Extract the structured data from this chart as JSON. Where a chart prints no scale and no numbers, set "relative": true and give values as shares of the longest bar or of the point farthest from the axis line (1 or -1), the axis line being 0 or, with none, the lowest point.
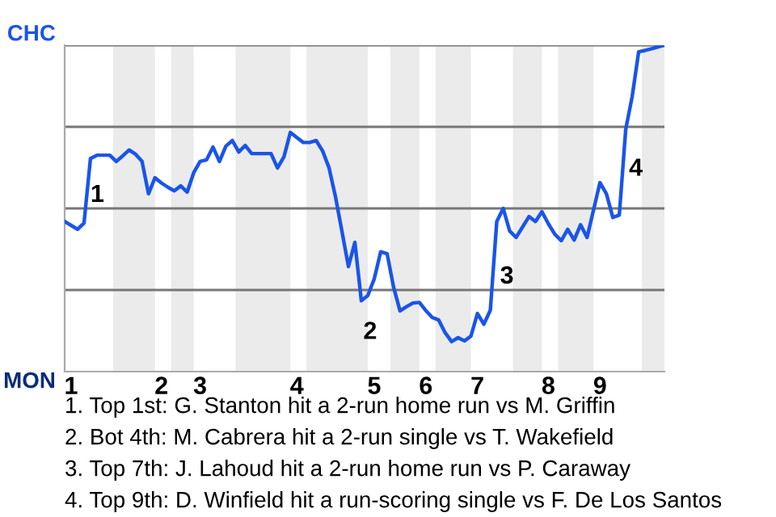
{
  "chart_data": {
    "type": "line",
    "relative": true,
    "categories": [
      null,
      "1",
      null,
      null,
      null,
      null,
      null,
      null,
      null,
      null,
      null,
      null,
      null,
      null,
      null,
      "2",
      null,
      null,
      null,
      null,
      null,
      "3",
      null,
      null,
      null,
      null,
      null,
      null,
      null,
      null,
      null,
      null,
      null,
      null,
      null,
      null,
      "4",
      null,
      null,
      null,
      null,
      null,
      null,
      null,
      null,
      null,
      null,
      null,
      "5",
      null,
      null,
      null,
      null,
      null,
      null,
      null,
      "6",
      null,
      null,
      null,
      null,
      null,
      null,
      null,
      "7",
      null,
      null,
      null,
      null,
      null,
      null,
      null,
      null,
      null,
      null,
      "8",
      null,
      null,
      null,
      null,
      null,
      null,
      null,
      "9",
      null,
      null,
      null,
      null,
      null,
      null,
      null,
      null,
      null,
      null
    ],
    "series": [
      {
        "color": "#1a55e8",
        "values": [
          0.46,
          0.448,
          0.436,
          0.455,
          0.653,
          0.663,
          0.663,
          0.663,
          0.644,
          0.661,
          0.679,
          0.666,
          0.644,
          0.545,
          0.594,
          0.578,
          0.565,
          0.554,
          0.569,
          0.55,
          0.609,
          0.644,
          0.649,
          0.688,
          0.644,
          0.691,
          0.708,
          0.673,
          0.693,
          0.668,
          0.668,
          0.668,
          0.668,
          0.624,
          0.658,
          0.733,
          0.717,
          0.702,
          0.702,
          0.708,
          0.676,
          0.624,
          0.535,
          0.429,
          0.322,
          0.396,
          0.217,
          0.233,
          0.284,
          0.367,
          0.361,
          0.259,
          0.186,
          0.199,
          0.21,
          0.212,
          0.187,
          0.166,
          0.158,
          0.119,
          0.092,
          0.104,
          0.094,
          0.109,
          0.178,
          0.145,
          0.188,
          0.46,
          0.5,
          0.431,
          0.411,
          0.443,
          0.475,
          0.46,
          0.49,
          0.453,
          0.421,
          0.401,
          0.436,
          0.403,
          0.45,
          0.411,
          0.495,
          0.579,
          0.545,
          0.472,
          0.48,
          0.743,
          0.843,
          0.98,
          0.984,
          0.989,
          0.995,
          1
        ]
      }
    ],
    "ref_lines": [
      {
        "axis": "y",
        "value": 0.25,
        "color": "#777777"
      },
      {
        "axis": "y",
        "value": 0.5,
        "color": "#777777"
      },
      {
        "axis": "y",
        "value": 0.75,
        "color": "#777777"
      },
      {
        "axis": "y",
        "value": 1,
        "color": "#777777"
      }
    ],
    "marker": "none",
    "line_style": "solid",
    "annotations": [
      "CHC",
      "MON",
      "1",
      "2",
      "3",
      "4",
      "1. Top 1st: G. Stanton hit a 2-run home run vs M. Griffin",
      "2. Bot 4th: M. Cabrera hit a 2-run single vs T. Wakefield",
      "3. Top 7th: J. Lahoud hit a 2-run home run vs P. Caraway",
      "4. Top 9th: D. Winfield hit a run-scoring single vs F. De Los Santos"
    ]
  }
}
